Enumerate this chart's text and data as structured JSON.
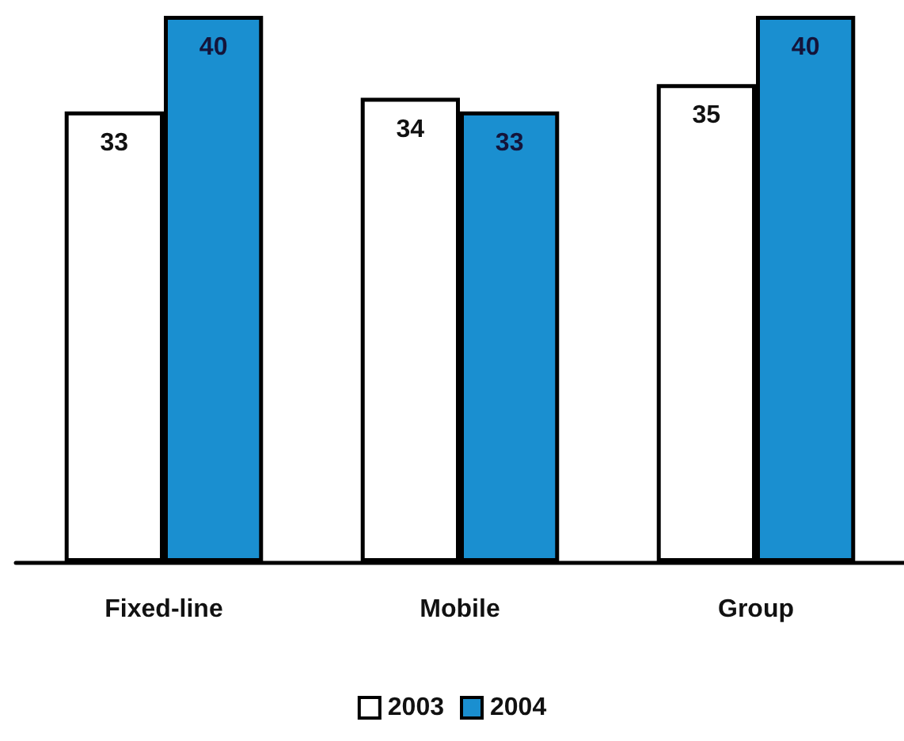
{
  "chart_data": {
    "type": "bar",
    "categories": [
      "Fixed-line",
      "Mobile",
      "Group"
    ],
    "series": [
      {
        "name": "2003",
        "color": "#ffffff",
        "values": [
          33,
          34,
          35
        ]
      },
      {
        "name": "2004",
        "color": "#1a8fd0",
        "values": [
          40,
          33,
          40
        ]
      }
    ],
    "data_labels": true,
    "legend": "bottom",
    "grid": false
  }
}
